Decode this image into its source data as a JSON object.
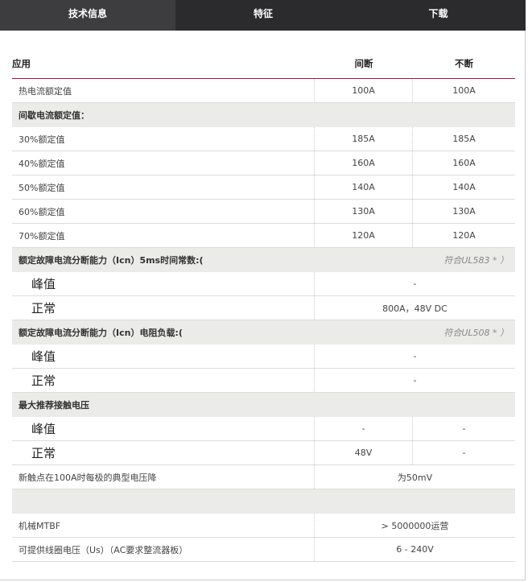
{
  "tabs": [
    {
      "label": "技术信息",
      "active": true
    },
    {
      "label": "特征",
      "active": false
    },
    {
      "label": "下载",
      "active": false
    }
  ],
  "table": {
    "headers": [
      "应用",
      "间断",
      "不断"
    ],
    "rows": [
      {
        "type": "row",
        "label": "热电流额定值",
        "values": [
          "100A",
          "100A"
        ]
      },
      {
        "type": "section",
        "label": "间歇电流额定值：",
        "note": ""
      },
      {
        "type": "row",
        "label": "30%额定值",
        "values": [
          "185A",
          "185A"
        ]
      },
      {
        "type": "row",
        "label": "40%额定值",
        "values": [
          "160A",
          "160A"
        ]
      },
      {
        "type": "row",
        "label": "50%额定值",
        "values": [
          "140A",
          "140A"
        ]
      },
      {
        "type": "row",
        "label": "60%额定值",
        "values": [
          "130A",
          "130A"
        ]
      },
      {
        "type": "row",
        "label": "70%额定值",
        "values": [
          "120A",
          "120A"
        ]
      },
      {
        "type": "section",
        "label": "额定故障电流分断能力（Icn）5ms时间常数:(",
        "note": "符合UL583 * ）"
      },
      {
        "type": "merged",
        "sub": true,
        "label": "峰值",
        "value": "-"
      },
      {
        "type": "merged",
        "sub": true,
        "label": "正常",
        "value": "800A，48V DC"
      },
      {
        "type": "section",
        "label": "额定故障电流分断能力（Icn）电阻负载:(",
        "note": "符合UL508 * ）"
      },
      {
        "type": "merged",
        "sub": true,
        "label": "峰值",
        "value": "-"
      },
      {
        "type": "merged",
        "sub": true,
        "label": "正常",
        "value": "-"
      },
      {
        "type": "section",
        "label": "最大推荐接触电压",
        "note": ""
      },
      {
        "type": "row",
        "sub": true,
        "label": "峰值",
        "values": [
          "-",
          "-"
        ]
      },
      {
        "type": "row",
        "sub": true,
        "label": "正常",
        "values": [
          "48V",
          "-"
        ]
      },
      {
        "type": "merged",
        "label": "新触点在100A时每极的典型电压降",
        "value": "为50mV"
      },
      {
        "type": "section",
        "label": "",
        "note": ""
      },
      {
        "type": "merged",
        "label": "机械MTBF",
        "value": "> 5000000运营"
      },
      {
        "type": "merged",
        "label": "可提供线圈电压（Us）（AC要求整流器板）",
        "value": "6 - 240V"
      }
    ]
  }
}
